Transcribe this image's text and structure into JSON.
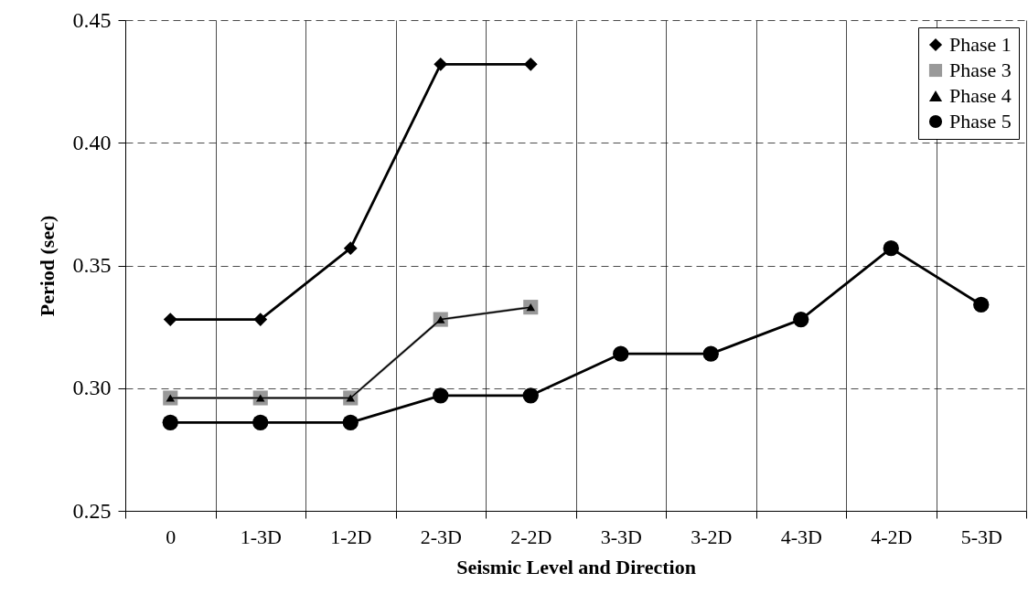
{
  "chart_data": {
    "type": "line",
    "xlabel": "Seismic Level and Direction",
    "ylabel": "Period (sec)",
    "categories": [
      "0",
      "1-3D",
      "1-2D",
      "2-3D",
      "2-2D",
      "3-3D",
      "3-2D",
      "4-3D",
      "4-2D",
      "5-3D"
    ],
    "series": [
      {
        "name": "Phase 1",
        "color": "#000000",
        "marker": "diamond",
        "values": [
          0.328,
          0.328,
          0.357,
          0.432,
          0.432,
          null,
          null,
          null,
          null,
          null
        ]
      },
      {
        "name": "Phase 3",
        "color": "#999999",
        "marker": "square",
        "values": [
          0.296,
          0.296,
          0.296,
          0.328,
          0.333,
          null,
          null,
          null,
          null,
          null
        ]
      },
      {
        "name": "Phase 4",
        "color": "#000000",
        "marker": "triangle",
        "values": [
          0.296,
          0.296,
          0.296,
          0.328,
          0.333,
          null,
          null,
          null,
          null,
          null
        ]
      },
      {
        "name": "Phase 5",
        "color": "#000000",
        "marker": "circle",
        "values": [
          0.286,
          0.286,
          0.286,
          0.297,
          0.297,
          0.314,
          0.314,
          0.328,
          0.357,
          0.334
        ]
      }
    ],
    "ylim": [
      0.25,
      0.45
    ],
    "yticks": [
      {
        "value": 0.25,
        "label": "0.25"
      },
      {
        "value": 0.3,
        "label": "0.30"
      },
      {
        "value": 0.35,
        "label": "0.35"
      },
      {
        "value": 0.4,
        "label": "0.40"
      },
      {
        "value": 0.45,
        "label": "0.45"
      }
    ],
    "grid": true,
    "legend": "top right"
  }
}
